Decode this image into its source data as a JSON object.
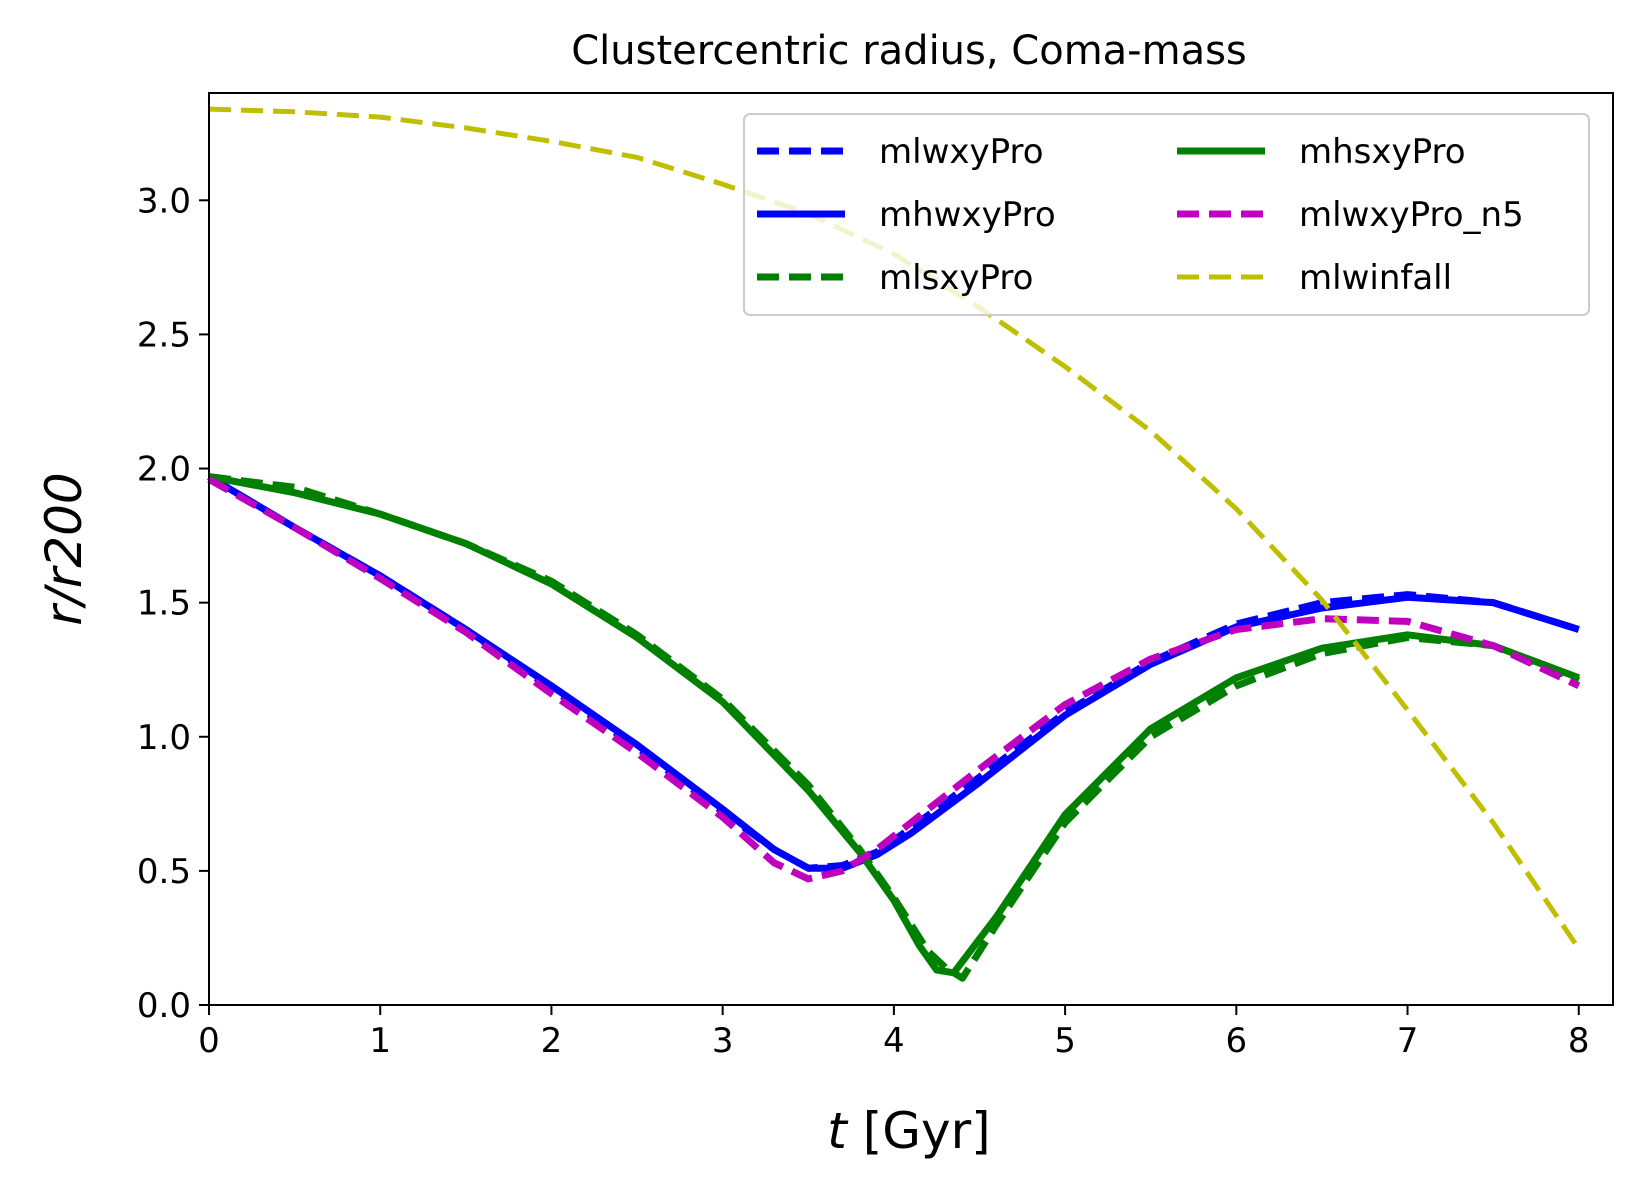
{
  "chart_data": {
    "type": "line",
    "title": "Clustercentric radius, Coma-mass",
    "xlabel_var": "t",
    "xlabel_unit": " [Gyr]",
    "ylabel": "r/r200",
    "xlim": [
      0,
      8.2
    ],
    "ylim": [
      0,
      3.4
    ],
    "xticks": [
      0,
      1,
      2,
      3,
      4,
      5,
      6,
      7,
      8
    ],
    "xtick_labels": [
      "0",
      "1",
      "2",
      "3",
      "4",
      "5",
      "6",
      "7",
      "8"
    ],
    "yticks": [
      0,
      0.5,
      1,
      1.5,
      2,
      2.5,
      3
    ],
    "ytick_labels": [
      "0.0",
      "0.5",
      "1.0",
      "1.5",
      "2.0",
      "2.5",
      "3.0"
    ],
    "legend_position": "top-right",
    "series": [
      {
        "name": "mlwxyPro",
        "color": "#0000ff",
        "style": "dashed",
        "x": [
          0,
          0.5,
          1,
          1.5,
          2,
          2.5,
          3,
          3.3,
          3.5,
          3.7,
          3.9,
          4.1,
          4.5,
          5,
          5.5,
          6,
          6.5,
          7,
          7.5,
          8
        ],
        "y": [
          1.97,
          1.78,
          1.6,
          1.4,
          1.18,
          0.96,
          0.72,
          0.58,
          0.51,
          0.52,
          0.57,
          0.66,
          0.85,
          1.09,
          1.28,
          1.42,
          1.5,
          1.53,
          1.5,
          1.4
        ]
      },
      {
        "name": "mhwxyPro",
        "color": "#0000ff",
        "style": "solid",
        "x": [
          0,
          0.5,
          1,
          1.5,
          2,
          2.5,
          3,
          3.3,
          3.5,
          3.7,
          3.9,
          4.1,
          4.5,
          5,
          5.5,
          6,
          6.5,
          7,
          7.5,
          8
        ],
        "y": [
          1.97,
          1.78,
          1.6,
          1.4,
          1.19,
          0.97,
          0.73,
          0.58,
          0.51,
          0.51,
          0.56,
          0.64,
          0.83,
          1.08,
          1.27,
          1.41,
          1.48,
          1.52,
          1.5,
          1.4
        ]
      },
      {
        "name": "mlsxyPro",
        "color": "#008000",
        "style": "dashed",
        "x": [
          0,
          0.5,
          1,
          1.5,
          2,
          2.5,
          3,
          3.5,
          3.8,
          4,
          4.2,
          4.3,
          4.4,
          4.6,
          5,
          5.5,
          6,
          6.5,
          7,
          7.5,
          8
        ],
        "y": [
          1.97,
          1.93,
          1.83,
          1.72,
          1.58,
          1.38,
          1.14,
          0.82,
          0.58,
          0.4,
          0.2,
          0.14,
          0.1,
          0.3,
          0.68,
          1.0,
          1.19,
          1.31,
          1.37,
          1.34,
          1.21
        ]
      },
      {
        "name": "mhsxyPro",
        "color": "#008000",
        "style": "solid",
        "x": [
          0,
          0.5,
          1,
          1.5,
          2,
          2.5,
          3,
          3.5,
          3.8,
          4,
          4.15,
          4.25,
          4.35,
          4.6,
          5,
          5.5,
          6,
          6.5,
          7,
          7.5,
          8
        ],
        "y": [
          1.97,
          1.91,
          1.83,
          1.72,
          1.57,
          1.37,
          1.13,
          0.8,
          0.57,
          0.39,
          0.22,
          0.13,
          0.12,
          0.33,
          0.71,
          1.03,
          1.22,
          1.33,
          1.38,
          1.34,
          1.22
        ]
      },
      {
        "name": "mlwxyPro_n5",
        "color": "#bf00bf",
        "style": "dashed",
        "x": [
          0,
          0.5,
          1,
          1.5,
          2,
          2.5,
          3,
          3.3,
          3.5,
          3.7,
          3.9,
          4.1,
          4.5,
          5,
          5.5,
          6,
          6.5,
          7,
          7.5,
          8
        ],
        "y": [
          1.96,
          1.78,
          1.59,
          1.39,
          1.16,
          0.94,
          0.7,
          0.53,
          0.47,
          0.5,
          0.58,
          0.68,
          0.88,
          1.12,
          1.29,
          1.4,
          1.44,
          1.43,
          1.34,
          1.19
        ]
      },
      {
        "name": "mlwinfall",
        "color": "#bfbf00",
        "style": "dashed",
        "x": [
          0,
          0.5,
          1,
          1.5,
          2,
          2.5,
          3,
          3.5,
          4,
          4.5,
          5,
          5.5,
          6,
          6.5,
          7,
          7.5,
          8
        ],
        "y": [
          3.34,
          3.33,
          3.31,
          3.27,
          3.22,
          3.16,
          3.06,
          2.95,
          2.8,
          2.6,
          2.38,
          2.14,
          1.85,
          1.51,
          1.1,
          0.68,
          0.21
        ]
      }
    ]
  }
}
